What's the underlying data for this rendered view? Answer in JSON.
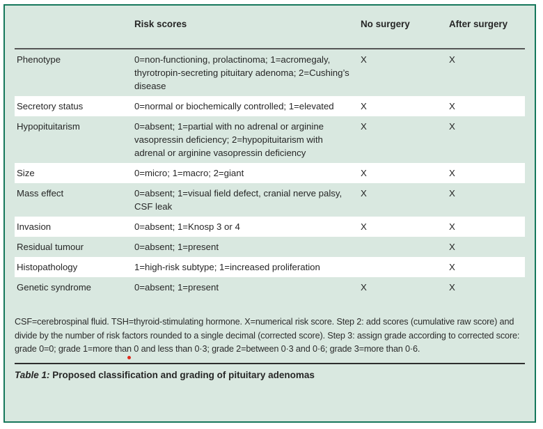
{
  "table": {
    "header": {
      "col1": "",
      "col2": "Risk scores",
      "col3": "No surgery",
      "col4": "After surgery"
    },
    "rows": [
      {
        "label": "Phenotype",
        "risk": "0=non-functioning, prolactinoma; 1=acromegaly, thyrotropin-secreting pituitary adenoma; 2=Cushing’s disease",
        "no_surgery": "X",
        "after_surgery": "X",
        "shade": "green"
      },
      {
        "label": "Secretory status",
        "risk": "0=normal or biochemically controlled; 1=elevated",
        "no_surgery": "X",
        "after_surgery": "X",
        "shade": "white"
      },
      {
        "label": "Hypopituitarism",
        "risk": "0=absent; 1=partial with no adrenal or arginine vasopressin deficiency; 2=hypopituitarism with adrenal or arginine vasopressin deficiency",
        "no_surgery": "X",
        "after_surgery": "X",
        "shade": "green"
      },
      {
        "label": "Size",
        "risk": "0=micro; 1=macro; 2=giant",
        "no_surgery": "X",
        "after_surgery": "X",
        "shade": "white"
      },
      {
        "label": "Mass effect",
        "risk": "0=absent; 1=visual field defect, cranial nerve palsy, CSF leak",
        "no_surgery": "X",
        "after_surgery": "X",
        "shade": "green"
      },
      {
        "label": "Invasion",
        "risk": "0=absent; 1=Knosp 3 or 4",
        "no_surgery": "X",
        "after_surgery": "X",
        "shade": "white"
      },
      {
        "label": "Residual tumour",
        "risk": "0=absent; 1=present",
        "no_surgery": "",
        "after_surgery": "X",
        "shade": "green"
      },
      {
        "label": "Histopathology",
        "risk": "1=high-risk subtype; 1=increased proliferation",
        "no_surgery": "",
        "after_surgery": "X",
        "shade": "white"
      },
      {
        "label": "Genetic syndrome",
        "risk": "0=absent; 1=present",
        "no_surgery": "X",
        "after_surgery": "X",
        "shade": "green"
      }
    ],
    "footnote": "CSF=cerebrospinal fluid. TSH=thyroid-stimulating hormone. X=numerical risk score. Step 2: add scores (cumulative raw score) and divide by the number of risk factors rounded to a single decimal (corrected score). Step 3: assign grade according to corrected score: grade 0=0; grade 1=more than 0 and less than 0·3; grade 2=between 0·3 and 0·6; grade 3=more than 0·6.",
    "caption_prefix": "Table 1:",
    "caption_text": "Proposed classification and grading of pituitary adenomas"
  },
  "colors": {
    "table_bg": "#d9e8e0",
    "border_green": "#15775b",
    "row_white": "#ffffff",
    "rule_dark": "#555555",
    "caption_rule": "#2e2e2e",
    "text": "#262626",
    "red_dot": "#e02b1d"
  }
}
